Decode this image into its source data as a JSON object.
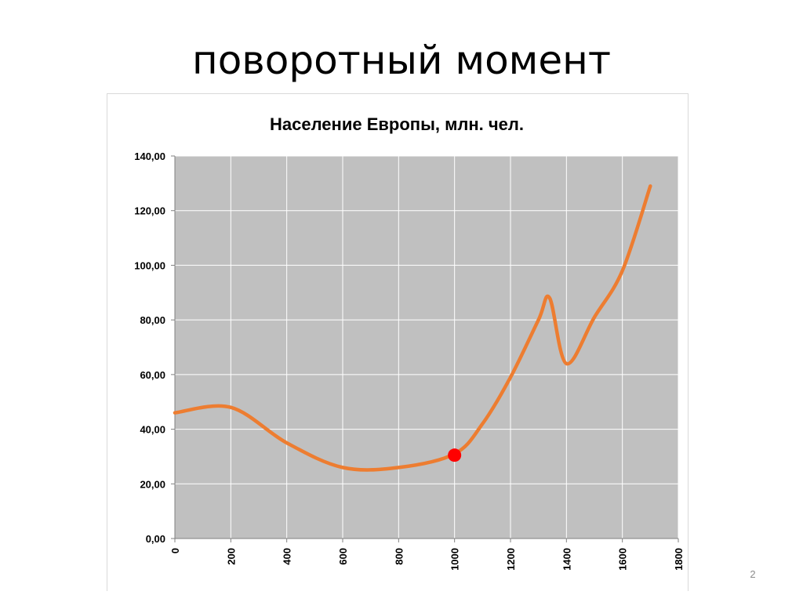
{
  "slide": {
    "title": "поворотный момент",
    "number": "2"
  },
  "chart_data": {
    "type": "line",
    "title": "Население Европы, млн. чел.",
    "xlabel": "",
    "ylabel": "",
    "xlim": [
      0,
      1800
    ],
    "ylim": [
      0,
      140
    ],
    "x_ticks": [
      "0",
      "200",
      "400",
      "600",
      "800",
      "1000",
      "1200",
      "1400",
      "1600",
      "1800"
    ],
    "y_ticks": [
      "0,00",
      "20,00",
      "40,00",
      "60,00",
      "80,00",
      "100,00",
      "120,00",
      "140,00"
    ],
    "grid": true,
    "legend": "none",
    "background_color": "#c0c0c0",
    "line_color": "#ed7d31",
    "highlight_color": "#ff0000",
    "series": [
      {
        "x": [
          0,
          200,
          400,
          600,
          800,
          1000,
          1100,
          1200,
          1300,
          1340,
          1400,
          1500,
          1600,
          1700
        ],
        "y": [
          46,
          48,
          35,
          26,
          26,
          31,
          42,
          59,
          80,
          88,
          64,
          81,
          98,
          129
        ]
      }
    ],
    "highlight_point": {
      "x": 1000,
      "y": 30.5
    }
  }
}
